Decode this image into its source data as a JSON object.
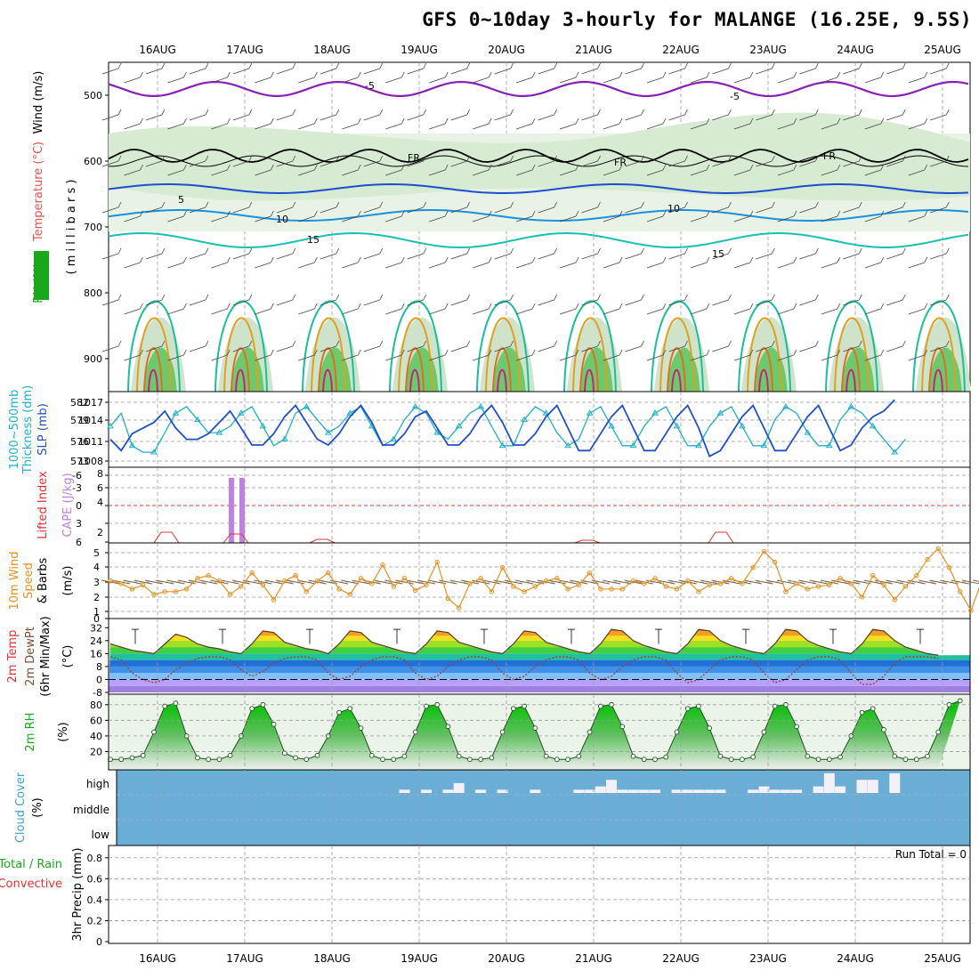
{
  "title": "GFS 0~10day 3-hourly for MALANGE (16.25E, 9.5S)",
  "dates": [
    "16AUG",
    "17AUG",
    "18AUG",
    "19AUG",
    "20AUG",
    "21AUG",
    "22AUG",
    "23AUG",
    "24AUG",
    "25AUG"
  ],
  "panels": {
    "upper": {
      "labels": [
        "Wind (m/s)",
        "Temperature (°C)",
        "RH (%)",
        "( m i l l i b a r s )"
      ],
      "colors": [
        "#000000",
        "#e8504a",
        "#1aa81a",
        "#000000"
      ],
      "ticks": [
        "500",
        "600",
        "700",
        "800",
        "900"
      ]
    },
    "slp": {
      "labels": [
        "1000~500mb",
        "Thickness (dm)",
        "SLP (mb)"
      ],
      "colors": [
        "#20b0c8",
        "#20b0c8",
        "#2050c8"
      ],
      "left_ticks": [
        "582",
        "579",
        "576",
        "573"
      ],
      "right_ticks": [
        "1017",
        "1014",
        "1011",
        "1008"
      ]
    },
    "cape": {
      "labels": [
        "Lifted Index",
        "CAPE (J/kg)"
      ],
      "colors": [
        "#e83030",
        "#c080e0"
      ],
      "left_ticks": [
        "-6",
        "-3",
        "0",
        "3",
        "6"
      ],
      "right_ticks": [
        "8",
        "6",
        "4",
        "2"
      ]
    },
    "wind10": {
      "labels": [
        "10m Wind",
        "Speed",
        "& Barbs",
        "(m/s)"
      ],
      "colors": [
        "#e89020",
        "#e89020",
        "#000000",
        "#000000"
      ],
      "ticks": [
        "5",
        "4",
        "3",
        "2",
        "1",
        "0"
      ]
    },
    "temp": {
      "labels": [
        "2m Temp",
        "2m DewPt",
        "(6hr Min/Max)",
        "(°C)"
      ],
      "colors": [
        "#e83030",
        "#7a5030",
        "#000000",
        "#000000"
      ],
      "ticks": [
        "32",
        "24",
        "16",
        "8",
        "0",
        "-8"
      ]
    },
    "rh": {
      "labels": [
        "2m RH",
        "(%)"
      ],
      "colors": [
        "#1aa81a",
        "#000000"
      ],
      "ticks": [
        "80",
        "60",
        "40",
        "20"
      ]
    },
    "cloud": {
      "labels": [
        "Cloud Cover",
        "(%)"
      ],
      "colors": [
        "#40a0d0",
        "#000000"
      ],
      "levels": [
        "high",
        "middle",
        "low"
      ]
    },
    "precip": {
      "labels": [
        "Total / Rain",
        "Convective",
        "3hr Precip (mm)"
      ],
      "colors": [
        "#1aa81a",
        "#e83030",
        "#000000"
      ],
      "ticks": [
        "0.8",
        "0.6",
        "0.4",
        "0.2",
        "0"
      ],
      "run_total": "Run Total = 0"
    }
  },
  "chart_data": [
    {
      "type": "line",
      "title": "2m Temp / 2m DewPt (°C)",
      "x": [
        "15AUG18",
        "15AUG21",
        "16AUG00",
        "16AUG03",
        "16AUG06",
        "16AUG09",
        "16AUG12",
        "16AUG15",
        "16AUG18",
        "16AUG21",
        "17AUG00",
        "17AUG03",
        "17AUG06",
        "17AUG09",
        "17AUG12",
        "17AUG15",
        "17AUG18",
        "17AUG21",
        "18AUG00",
        "18AUG03",
        "18AUG06",
        "18AUG09",
        "18AUG12",
        "18AUG15",
        "18AUG18",
        "18AUG21",
        "19AUG00",
        "19AUG03",
        "19AUG06",
        "19AUG09",
        "19AUG12",
        "19AUG15",
        "19AUG18",
        "19AUG21",
        "20AUG00",
        "20AUG03",
        "20AUG06",
        "20AUG09",
        "20AUG12",
        "20AUG15",
        "20AUG18",
        "20AUG21",
        "21AUG00",
        "21AUG03",
        "21AUG06",
        "21AUG09",
        "21AUG12",
        "21AUG15",
        "21AUG18",
        "21AUG21",
        "22AUG00",
        "22AUG03",
        "22AUG06",
        "22AUG09",
        "22AUG12",
        "22AUG15",
        "22AUG18",
        "22AUG21",
        "23AUG00",
        "23AUG03",
        "23AUG06",
        "23AUG09",
        "23AUG12",
        "23AUG15",
        "23AUG18",
        "23AUG21",
        "24AUG00",
        "24AUG03",
        "24AUG06",
        "24AUG09",
        "24AUG12",
        "24AUG15",
        "24AUG18",
        "24AUG21",
        "25AUG00",
        "25AUG03",
        "25AUG06"
      ],
      "series": [
        {
          "name": "2m Temp",
          "values": [
            22,
            20,
            18,
            17,
            16,
            22,
            28,
            26,
            22,
            20,
            19,
            17,
            16,
            22,
            30,
            29,
            23,
            21,
            19,
            18,
            16,
            22,
            30,
            29,
            23,
            21,
            19,
            17,
            16,
            22,
            30,
            29,
            23,
            21,
            19,
            17,
            16,
            22,
            30,
            29,
            23,
            21,
            19,
            17,
            16,
            22,
            31,
            30,
            24,
            21,
            19,
            17,
            16,
            22,
            31,
            30,
            24,
            21,
            19,
            17,
            16,
            22,
            31,
            30,
            24,
            21,
            19,
            17,
            16,
            22,
            31,
            30,
            24,
            20,
            18,
            16,
            15
          ]
        },
        {
          "name": "2m DewPt",
          "values": [
            14,
            12,
            4,
            0,
            -2,
            0,
            6,
            10,
            13,
            14,
            14,
            12,
            6,
            2,
            5,
            10,
            13,
            14,
            14,
            12,
            4,
            0,
            2,
            8,
            12,
            14,
            14,
            12,
            4,
            0,
            2,
            8,
            12,
            14,
            14,
            12,
            4,
            0,
            2,
            8,
            12,
            14,
            14,
            12,
            4,
            0,
            2,
            8,
            12,
            14,
            14,
            12,
            4,
            -2,
            0,
            6,
            12,
            14,
            14,
            12,
            4,
            -2,
            0,
            6,
            12,
            14,
            14,
            12,
            4,
            -3,
            -3,
            2,
            10,
            14,
            14,
            14,
            13
          ]
        }
      ],
      "ylabel": "(°C)",
      "ylim": [
        -8,
        36
      ]
    },
    {
      "type": "line",
      "title": "2m RH (%)",
      "series": [
        {
          "name": "2m RH",
          "values": [
            10,
            10,
            12,
            15,
            45,
            78,
            82,
            40,
            12,
            10,
            10,
            15,
            40,
            75,
            80,
            55,
            18,
            12,
            10,
            15,
            40,
            70,
            75,
            50,
            15,
            10,
            10,
            14,
            45,
            78,
            80,
            52,
            14,
            10,
            10,
            12,
            45,
            75,
            78,
            50,
            14,
            10,
            10,
            14,
            45,
            78,
            80,
            52,
            14,
            10,
            10,
            13,
            45,
            75,
            78,
            50,
            14,
            10,
            10,
            13,
            45,
            78,
            80,
            52,
            14,
            10,
            10,
            13,
            40,
            70,
            75,
            48,
            14,
            10,
            10,
            14,
            45,
            80,
            85
          ]
        }
      ],
      "ylim": [
        0,
        90
      ]
    },
    {
      "type": "line",
      "title": "10m Wind Speed & Barbs (m/s)",
      "series": [
        {
          "name": "10m Wind Speed",
          "values": [
            2.8,
            2.6,
            2.2,
            2.5,
            1.8,
            2,
            2,
            2.2,
            3,
            3.2,
            2.8,
            1.8,
            2.4,
            3.4,
            2.5,
            1.4,
            2.8,
            3.2,
            2,
            2.8,
            3.4,
            2.2,
            1.8,
            3,
            2.6,
            4,
            2.4,
            3,
            2.1,
            2.5,
            4.2,
            1.5,
            0.8,
            2.6,
            3,
            2,
            3.8,
            2.4,
            2,
            2.4,
            2.8,
            3,
            2.2,
            2.5,
            3.4,
            2.2,
            2.2,
            2.2,
            2.8,
            2.6,
            3,
            2.4,
            2.2,
            2.8,
            2,
            2.5,
            2.6,
            3,
            2.6,
            3.8,
            5,
            4.2,
            2,
            2.6,
            2.2,
            2.4,
            2.5,
            3,
            2.6,
            1.6,
            3.2,
            2.5,
            1.4,
            2.4,
            3.2,
            4.4,
            5.2,
            3.8,
            2,
            0.6,
            2.8,
            2.2,
            2
          ]
        }
      ],
      "ylim": [
        0,
        5.5
      ]
    },
    {
      "type": "line",
      "title": "SLP (mb) / 1000~500mb Thickness (dm)",
      "series": [
        {
          "name": "SLP (mb)",
          "values": [
            1011,
            1009,
            1012,
            1013,
            1014,
            1016,
            1013,
            1011,
            1011,
            1012,
            1014,
            1016,
            1013,
            1010,
            1010,
            1012,
            1015,
            1017,
            1014,
            1011,
            1010,
            1012,
            1015,
            1017,
            1014,
            1010,
            1010,
            1012,
            1015,
            1016,
            1013,
            1010,
            1010,
            1012,
            1015,
            1017,
            1014,
            1010,
            1010,
            1012,
            1015,
            1017,
            1013,
            1009,
            1009,
            1012,
            1015,
            1017,
            1013,
            1009,
            1009,
            1012,
            1015,
            1017,
            1013,
            1008,
            1009,
            1012,
            1015,
            1017,
            1013,
            1009,
            1009,
            1012,
            1015,
            1017,
            1013,
            1009,
            1010,
            1013,
            1015,
            1016,
            1018
          ]
        },
        {
          "name": "1000~500mb Thickness (dm)",
          "values": [
            578,
            580,
            575,
            574,
            574,
            577,
            580,
            581,
            579,
            577,
            577,
            578,
            580,
            581,
            578,
            575,
            576,
            580,
            581,
            579,
            577,
            578,
            580,
            581,
            578,
            575,
            576,
            579,
            581,
            580,
            577,
            576,
            578,
            580,
            581,
            578,
            575,
            575,
            579,
            581,
            580,
            577,
            575,
            576,
            580,
            581,
            578,
            575,
            575,
            578,
            580,
            581,
            578,
            575,
            575,
            578,
            580,
            581,
            578,
            575,
            575,
            579,
            581,
            580,
            577,
            575,
            575,
            579,
            581,
            580,
            578,
            576,
            574,
            576
          ]
        }
      ],
      "ylim": [
        572,
        584
      ]
    },
    {
      "type": "bar",
      "title": "CAPE (J/kg)",
      "categories": [
        "16AUG21",
        "17AUG00"
      ],
      "values": [
        8,
        8
      ],
      "ylim": [
        0,
        8
      ]
    },
    {
      "type": "bar",
      "title": "Cloud Cover (%) high",
      "series": [
        {
          "name": "high",
          "values": [
            0,
            0,
            0,
            0,
            0,
            0,
            0,
            0,
            0,
            0,
            0,
            0,
            0,
            0,
            0,
            0,
            0,
            0,
            0,
            0,
            0,
            0,
            0,
            0,
            0,
            0,
            0,
            1,
            0,
            1,
            0,
            1,
            3,
            0,
            1,
            0,
            1,
            0,
            0,
            1,
            0,
            0,
            0,
            1,
            1,
            2,
            4,
            1,
            1,
            1,
            1,
            0,
            1,
            1,
            1,
            1,
            1,
            0,
            0,
            1,
            2,
            1,
            1,
            1,
            0,
            2,
            6,
            2,
            0,
            4,
            4,
            0,
            6,
            0,
            0,
            0,
            0,
            0,
            0,
            0,
            0
          ]
        }
      ],
      "ylim": [
        0,
        100
      ]
    },
    {
      "type": "bar",
      "title": "3hr Precip (mm)",
      "values": [
        0
      ],
      "ylim": [
        0,
        0.9
      ]
    }
  ]
}
